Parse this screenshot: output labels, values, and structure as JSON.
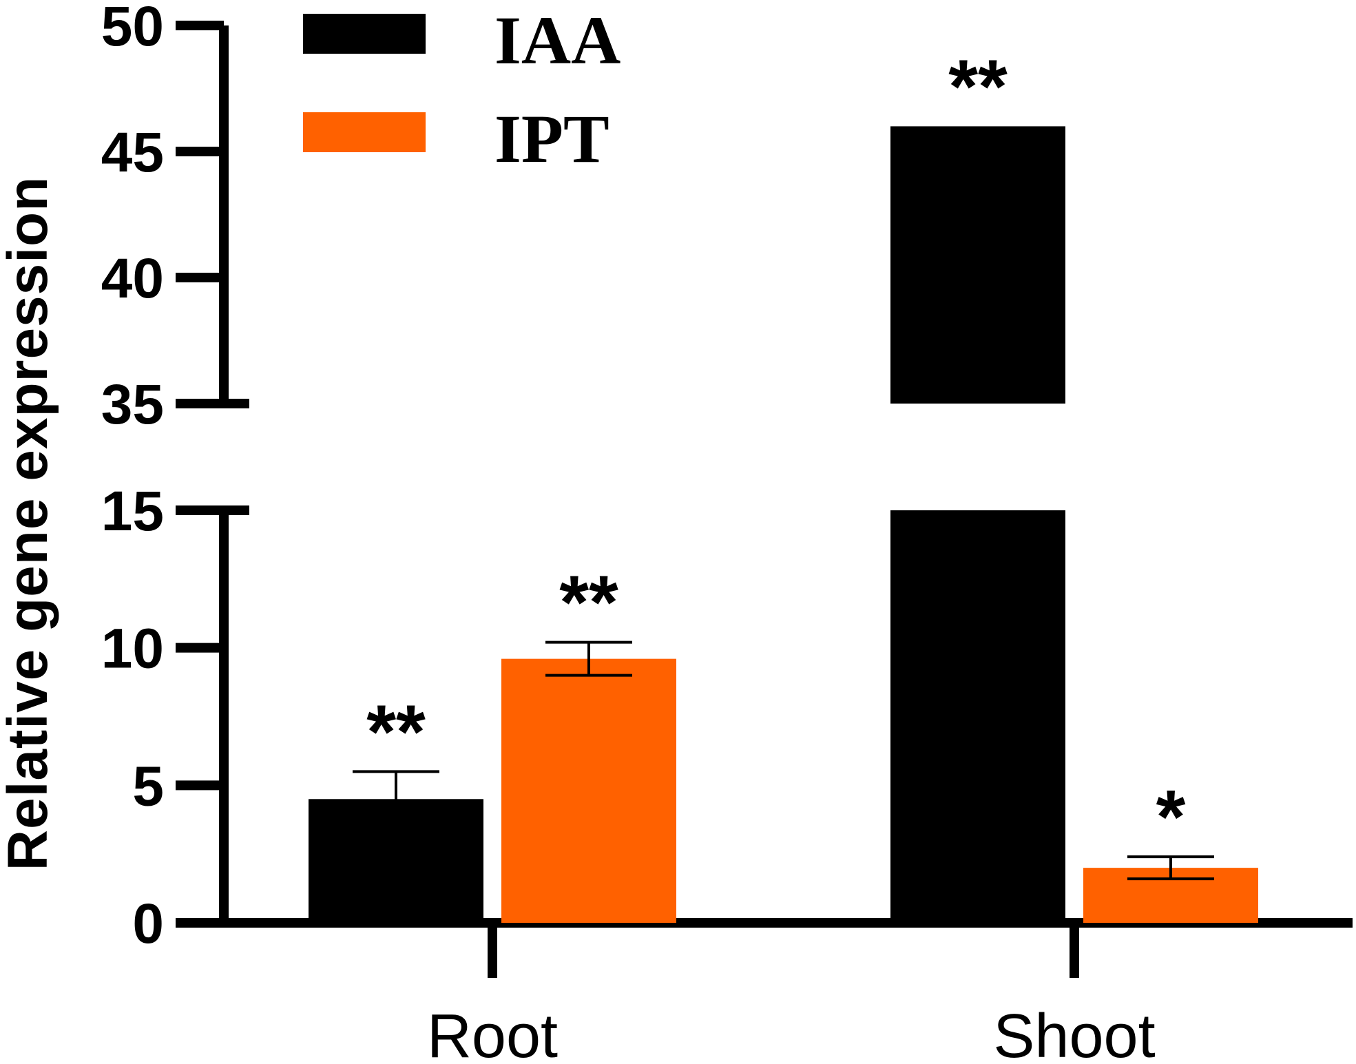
{
  "chart_data": {
    "type": "bar",
    "categories": [
      "Root",
      "Shoot"
    ],
    "series": [
      {
        "name": "IAA",
        "color": "#000000",
        "values": [
          4.5,
          46.0
        ],
        "error": [
          1.0,
          null
        ],
        "significance": [
          "**",
          "**"
        ]
      },
      {
        "name": "IPT",
        "color": "#ff6100",
        "values": [
          9.6,
          2.0
        ],
        "error": [
          0.6,
          0.4
        ],
        "significance": [
          "**",
          "*"
        ]
      }
    ],
    "ylabel": "Relative gene expression",
    "xlabel": "",
    "y_axis_break": {
      "lower_segment": [
        0,
        15
      ],
      "upper_segment": [
        35,
        50
      ]
    },
    "yticks_lower": [
      0,
      5,
      10,
      15
    ],
    "yticks_upper": [
      35,
      40,
      45,
      50
    ],
    "legend_position": "top-left",
    "grid": false
  }
}
